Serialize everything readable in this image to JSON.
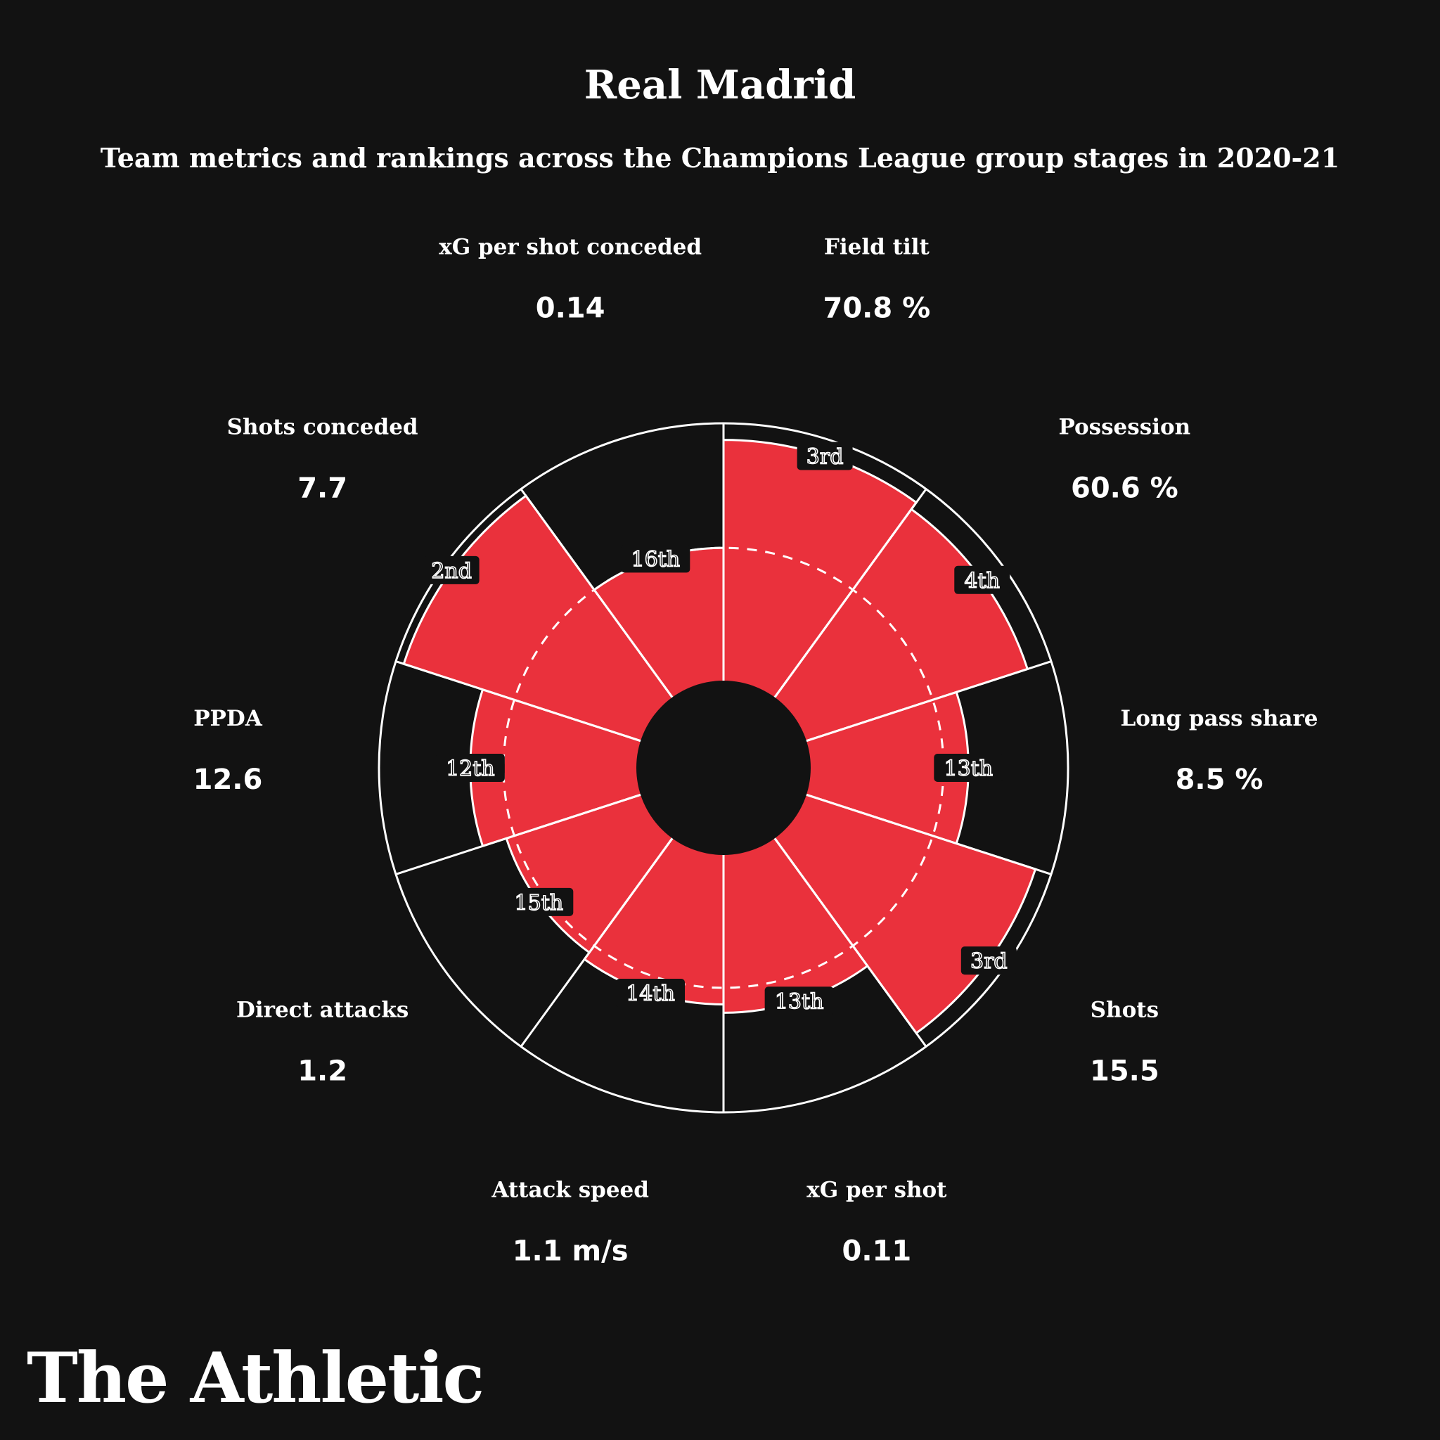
{
  "colors": {
    "background": "#121212",
    "bar": "#ea313c",
    "rank_badge": "#121212",
    "line": "#ffffff"
  },
  "header": {
    "title": "Real Madrid",
    "subtitle": "Team metrics and rankings across the Champions League group stages in 2020-21"
  },
  "footer": {
    "logo_text": "The Athletic"
  },
  "chart_data": {
    "type": "polar-bar",
    "title": "Real Madrid",
    "subtitle": "Team metrics and rankings across the Champions League group stages in 2020-21",
    "scale": {
      "teams": 32,
      "rank_best": 1,
      "rank_worst": 32,
      "reference_ring_rank": 16
    },
    "metrics": [
      {
        "label": "Field tilt",
        "value": "70.8 %",
        "rank": "3rd",
        "rank_num": 3
      },
      {
        "label": "Possession",
        "value": "60.6 %",
        "rank": "4th",
        "rank_num": 4
      },
      {
        "label": "Long pass share",
        "value": "8.5 %",
        "rank": "13th",
        "rank_num": 13
      },
      {
        "label": "Shots",
        "value": "15.5",
        "rank": "3rd",
        "rank_num": 3
      },
      {
        "label": "xG per shot",
        "value": "0.11",
        "rank": "13th",
        "rank_num": 13
      },
      {
        "label": "Attack speed",
        "value": "1.1 m/s",
        "rank": "14th",
        "rank_num": 14
      },
      {
        "label": "Direct attacks",
        "value": "1.2",
        "rank": "15th",
        "rank_num": 15
      },
      {
        "label": "PPDA",
        "value": "12.6",
        "rank": "12th",
        "rank_num": 12
      },
      {
        "label": "Shots conceded",
        "value": "7.7",
        "rank": "2nd",
        "rank_num": 2
      },
      {
        "label": "xG per shot conceded",
        "value": "0.14",
        "rank": "16th",
        "rank_num": 16
      }
    ]
  }
}
